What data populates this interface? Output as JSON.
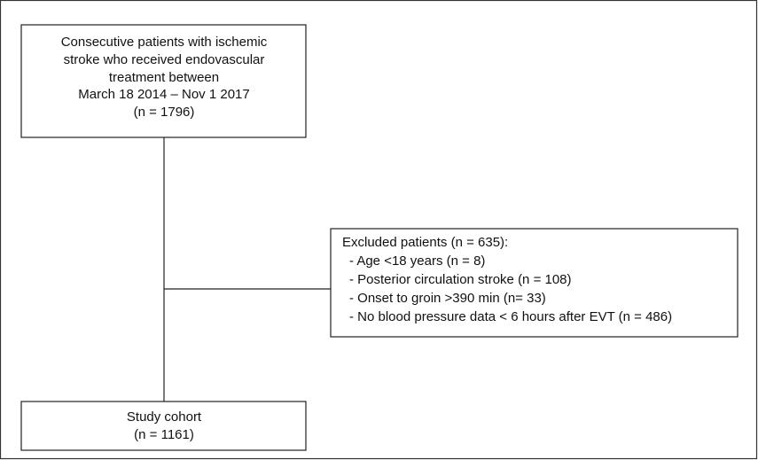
{
  "nodes": [
    {
      "lines": [
        "Consecutive patients with ischemic",
        "stroke who received endovascular",
        "treatment between",
        "March 18 2014 – Nov 1 2017",
        "(n = 1796)"
      ]
    },
    {
      "title": "Excluded patients (n = 635):",
      "items": [
        "- Age <18 years (n = 8)",
        "- Posterior circulation stroke (n = 108)",
        "- Onset to groin >390 min (n= 33)",
        "- No blood pressure data < 6 hours after EVT (n = 486)"
      ]
    },
    {
      "lines": [
        "Study cohort",
        "(n = 1161)"
      ]
    }
  ]
}
